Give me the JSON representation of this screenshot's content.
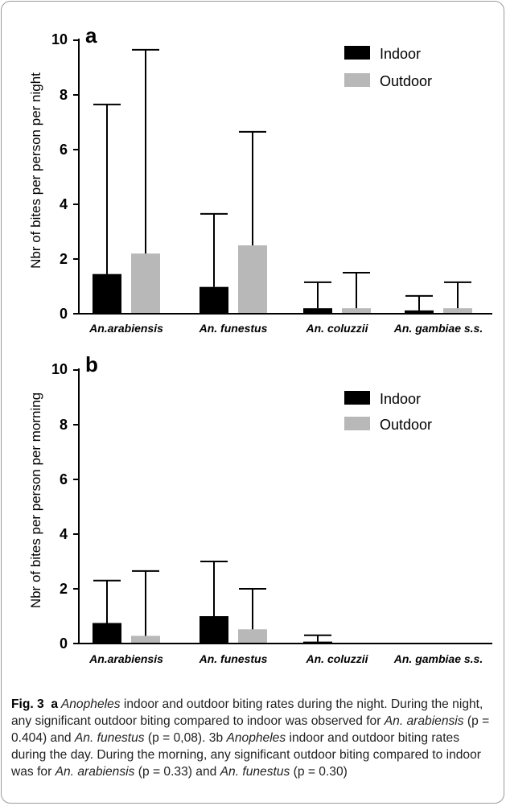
{
  "chart_data": [
    {
      "panel_label": "a",
      "type": "bar",
      "ylabel": "Nbr of bites per person per night",
      "ylim": [
        0,
        10
      ],
      "yticks": [
        "0",
        "2",
        "4",
        "6",
        "8",
        "10"
      ],
      "categories": [
        "An.arabiensis",
        "An. funestus",
        "An. coluzzii",
        "An. gambiae s.s."
      ],
      "series": [
        {
          "name": "Indoor",
          "color": "#000000",
          "values": [
            1.45,
            0.98,
            0.2,
            0.12
          ],
          "error_upper": [
            7.65,
            3.65,
            1.15,
            0.65
          ]
        },
        {
          "name": "Outdoor",
          "color": "#b8b8b8",
          "values": [
            2.2,
            2.5,
            0.2,
            0.2
          ],
          "error_upper": [
            9.65,
            6.65,
            1.5,
            1.15
          ]
        }
      ],
      "error_bars": "upper",
      "legend": "top-right"
    },
    {
      "panel_label": "b",
      "type": "bar",
      "ylabel": "Nbr of bites per person per morning",
      "ylim": [
        0,
        10
      ],
      "yticks": [
        "0",
        "2",
        "4",
        "6",
        "8",
        "10"
      ],
      "categories": [
        "An.arabiensis",
        "An. funestus",
        "An. coluzzii",
        "An. gambiae s.s."
      ],
      "series": [
        {
          "name": "Indoor",
          "color": "#000000",
          "values": [
            0.75,
            1.0,
            0.07,
            0
          ],
          "error_upper": [
            2.3,
            3.0,
            0.3,
            0
          ]
        },
        {
          "name": "Outdoor",
          "color": "#b8b8b8",
          "values": [
            0.28,
            0.52,
            0,
            0
          ],
          "error_upper": [
            2.65,
            2.0,
            0,
            0
          ]
        }
      ],
      "error_bars": "upper",
      "legend": "top-right"
    }
  ],
  "caption": {
    "fig_label": "Fig. 3",
    "panel_a_letter": "a",
    "text_1": " Anopheles",
    "text_2": " indoor and outdoor biting rates during the night. During the night, any significant outdoor biting compared to indoor was observed for ",
    "species_1": "An. arabiensis",
    "text_3": " (p = 0.404) and ",
    "species_2": "An. funestus",
    "text_4": " (p = 0,08). 3b ",
    "genus_2": "Anopheles",
    "text_5": " indoor and outdoor biting rates during the day. During the morning, any significant outdoor biting compared to indoor was for ",
    "species_3": "An. arabiensis",
    "text_6": " (p = 0.33) and ",
    "species_4": "An. funestus",
    "text_7": " (p = 0.30)"
  }
}
